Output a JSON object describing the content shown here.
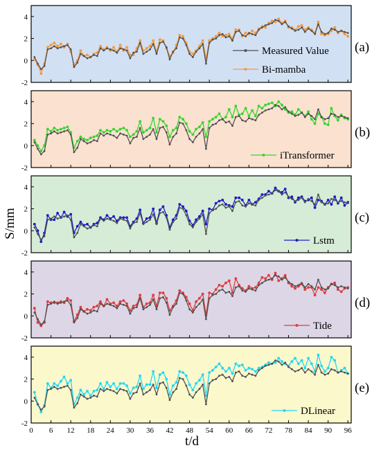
{
  "figure": {
    "ylabel": "S/mm",
    "xlabel": "t/d",
    "x_ticks": [
      0,
      6,
      12,
      18,
      24,
      30,
      36,
      42,
      48,
      54,
      60,
      66,
      72,
      78,
      84,
      90,
      96
    ],
    "y_ticks": [
      -2,
      0,
      2,
      4
    ]
  },
  "chart_data": {
    "type": "line",
    "xlabel": "t/d",
    "ylabel": "S/mm",
    "xlim": [
      0,
      97
    ],
    "ylim": [
      -2,
      5
    ],
    "x": [
      1,
      2,
      3,
      4,
      5,
      6,
      7,
      8,
      9,
      10,
      11,
      12,
      13,
      14,
      15,
      16,
      17,
      18,
      19,
      20,
      21,
      22,
      23,
      24,
      25,
      26,
      27,
      28,
      29,
      30,
      31,
      32,
      33,
      34,
      35,
      36,
      37,
      38,
      39,
      40,
      41,
      42,
      43,
      44,
      45,
      46,
      47,
      48,
      49,
      50,
      51,
      52,
      53,
      54,
      55,
      56,
      57,
      58,
      59,
      60,
      61,
      62,
      63,
      64,
      65,
      66,
      67,
      68,
      69,
      70,
      71,
      72,
      73,
      74,
      75,
      76,
      77,
      78,
      79,
      80,
      81,
      82,
      83,
      84,
      85,
      86,
      87,
      88,
      89,
      90,
      91,
      92,
      93,
      94,
      95,
      96
    ],
    "measured": [
      0.3,
      -0.3,
      -0.8,
      -0.5,
      1.0,
      1.1,
      1.3,
      1.1,
      1.2,
      1.3,
      1.4,
      1.0,
      -0.6,
      -0.2,
      0.6,
      0.4,
      0.2,
      0.3,
      0.5,
      0.4,
      1.1,
      0.9,
      1.1,
      1.0,
      0.9,
      0.7,
      1.1,
      1.0,
      0.9,
      0.2,
      0.7,
      0.8,
      1.6,
      0.6,
      0.8,
      1.0,
      1.5,
      0.6,
      1.6,
      1.7,
      1.2,
      0.1,
      0.8,
      1.1,
      2.1,
      2.0,
      1.4,
      0.6,
      0.3,
      0.8,
      1.1,
      1.5,
      -0.3,
      1.6,
      1.9,
      2.0,
      2.3,
      2.4,
      2.1,
      2.2,
      1.8,
      2.6,
      2.7,
      2.3,
      2.2,
      2.5,
      2.4,
      2.3,
      2.8,
      3.0,
      3.2,
      3.3,
      3.4,
      3.7,
      3.6,
      3.3,
      3.5,
      3.1,
      2.9,
      2.7,
      2.8,
      3.0,
      2.6,
      2.9,
      2.7,
      2.4,
      3.3,
      2.6,
      2.4,
      2.5,
      2.9,
      2.8,
      2.6,
      2.7,
      2.6,
      2.5
    ],
    "series": [
      {
        "name": "Bi-mamba",
        "panel": "(a)",
        "values": [
          0.1,
          -0.4,
          -1.2,
          -0.3,
          1.2,
          1.4,
          1.6,
          1.3,
          1.5,
          1.2,
          1.5,
          0.8,
          -0.4,
          0.0,
          0.9,
          0.4,
          0.5,
          0.3,
          0.6,
          0.7,
          1.3,
          1.0,
          1.2,
          0.9,
          1.2,
          0.8,
          1.4,
          0.9,
          1.2,
          0.5,
          0.5,
          1.1,
          1.8,
          0.9,
          1.1,
          1.3,
          1.8,
          0.8,
          1.9,
          1.8,
          1.1,
          0.4,
          0.7,
          1.4,
          2.3,
          2.2,
          1.6,
          0.8,
          0.6,
          0.9,
          1.3,
          1.8,
          0.2,
          1.8,
          2.0,
          2.2,
          2.5,
          2.2,
          2.3,
          2.4,
          2.0,
          2.8,
          2.8,
          2.2,
          2.5,
          2.4,
          2.7,
          2.5,
          2.9,
          3.1,
          3.0,
          3.4,
          3.6,
          3.5,
          3.8,
          3.4,
          3.6,
          3.0,
          3.0,
          2.8,
          3.1,
          3.2,
          2.8,
          3.0,
          2.8,
          2.5,
          3.5,
          2.4,
          2.3,
          2.4,
          2.7,
          3.0,
          2.5,
          2.7,
          2.4,
          2.2
        ]
      },
      {
        "name": "iTransformer",
        "panel": "(b)",
        "values": [
          0.5,
          0.0,
          -0.5,
          0.0,
          1.5,
          1.3,
          1.6,
          1.4,
          1.5,
          1.6,
          1.7,
          1.2,
          -0.2,
          0.4,
          0.8,
          0.6,
          0.5,
          0.7,
          0.8,
          0.9,
          1.4,
          1.2,
          1.4,
          1.3,
          1.5,
          1.3,
          1.5,
          1.6,
          1.4,
          0.8,
          1.0,
          1.3,
          2.2,
          1.2,
          1.4,
          1.6,
          2.5,
          1.2,
          2.4,
          2.2,
          1.8,
          0.8,
          1.4,
          1.6,
          2.6,
          2.4,
          2.0,
          1.3,
          1.0,
          1.5,
          1.7,
          2.1,
          0.8,
          2.2,
          2.4,
          2.6,
          2.9,
          2.4,
          2.6,
          3.3,
          2.6,
          3.6,
          2.8,
          2.9,
          3.4,
          2.7,
          3.2,
          2.7,
          3.6,
          3.4,
          3.7,
          3.8,
          3.9,
          3.6,
          4.0,
          3.7,
          3.3,
          3.0,
          3.1,
          2.8,
          3.3,
          3.0,
          2.7,
          3.1,
          2.4,
          2.0,
          2.9,
          2.6,
          2.0,
          1.9,
          3.4,
          2.7,
          2.3,
          2.8,
          2.5,
          2.4
        ]
      },
      {
        "name": "Lstm",
        "panel": "(c)",
        "values": [
          0.6,
          0.0,
          -1.0,
          -0.2,
          1.4,
          1.0,
          1.0,
          1.6,
          1.2,
          1.7,
          1.3,
          1.5,
          -0.2,
          0.4,
          0.8,
          0.5,
          0.6,
          0.3,
          0.6,
          0.7,
          1.2,
          1.0,
          1.4,
          1.1,
          1.3,
          0.9,
          1.2,
          1.2,
          1.2,
          0.4,
          0.8,
          1.1,
          1.9,
          0.7,
          1.1,
          1.2,
          2.0,
          0.7,
          1.9,
          2.2,
          1.4,
          0.3,
          1.0,
          1.4,
          2.4,
          2.2,
          1.8,
          0.9,
          0.5,
          1.0,
          1.3,
          1.8,
          0.6,
          2.0,
          1.9,
          2.5,
          2.7,
          2.8,
          2.4,
          2.3,
          2.2,
          3.0,
          3.0,
          2.8,
          2.3,
          2.8,
          2.4,
          2.6,
          2.9,
          3.3,
          3.3,
          3.6,
          3.4,
          3.9,
          3.6,
          3.5,
          3.8,
          3.0,
          3.1,
          2.6,
          3.0,
          3.1,
          2.7,
          2.8,
          3.0,
          2.1,
          2.8,
          2.7,
          2.4,
          2.8,
          2.4,
          3.1,
          2.5,
          3.0,
          2.3,
          2.6
        ]
      },
      {
        "name": "Tide",
        "panel": "(d)",
        "values": [
          0.7,
          -0.6,
          -0.9,
          -0.6,
          1.3,
          1.2,
          1.2,
          1.2,
          1.3,
          1.2,
          1.6,
          1.4,
          -0.5,
          0.1,
          0.8,
          0.4,
          0.6,
          0.5,
          0.8,
          0.9,
          1.3,
          0.9,
          1.5,
          1.1,
          1.2,
          0.9,
          1.3,
          1.4,
          1.1,
          0.5,
          0.9,
          1.0,
          1.9,
          0.8,
          1.1,
          1.2,
          1.9,
          0.9,
          2.1,
          2.1,
          1.6,
          0.5,
          0.9,
          1.4,
          2.3,
          2.1,
          1.7,
          1.1,
          0.5,
          1.3,
          1.6,
          2.0,
          0.1,
          2.1,
          2.0,
          2.4,
          2.8,
          2.7,
          3.0,
          3.2,
          2.1,
          3.4,
          2.8,
          2.5,
          2.3,
          2.7,
          2.5,
          2.6,
          3.0,
          3.5,
          3.4,
          3.7,
          3.3,
          3.9,
          3.2,
          3.4,
          3.7,
          3.0,
          2.7,
          2.5,
          2.7,
          2.9,
          2.4,
          2.6,
          2.6,
          1.9,
          2.6,
          2.4,
          2.1,
          2.6,
          2.9,
          3.0,
          2.4,
          2.2,
          2.5,
          2.6
        ]
      },
      {
        "name": "DLinear",
        "panel": "(e)",
        "values": [
          0.8,
          -0.3,
          -1.0,
          -0.4,
          1.6,
          1.2,
          1.6,
          1.4,
          1.8,
          2.2,
          1.6,
          1.9,
          -0.3,
          0.3,
          1.0,
          0.6,
          0.9,
          0.5,
          0.9,
          1.0,
          1.6,
          1.1,
          1.7,
          1.3,
          1.6,
          1.1,
          1.6,
          1.6,
          1.4,
          0.7,
          1.2,
          1.3,
          2.3,
          1.1,
          1.5,
          1.5,
          2.7,
          1.2,
          2.4,
          2.6,
          2.0,
          0.6,
          1.4,
          1.7,
          2.7,
          2.6,
          2.3,
          1.5,
          1.0,
          1.6,
          1.9,
          2.4,
          0.5,
          2.6,
          2.8,
          3.1,
          3.4,
          3.0,
          2.7,
          3.0,
          2.5,
          3.4,
          3.2,
          3.3,
          2.8,
          3.0,
          2.9,
          2.7,
          3.0,
          3.1,
          3.3,
          3.5,
          3.4,
          3.5,
          3.9,
          3.6,
          3.4,
          3.2,
          3.6,
          3.9,
          3.4,
          3.7,
          3.0,
          3.9,
          3.4,
          2.7,
          4.2,
          3.2,
          2.7,
          3.0,
          4.0,
          3.7,
          2.6,
          2.8,
          3.0,
          2.5
        ]
      }
    ],
    "panels": [
      {
        "label": "(a)",
        "background": "#d2e0f4",
        "color": "#f59a3c",
        "legend": [
          "Measured Value",
          "Bi-mamba"
        ],
        "legend_position": "right"
      },
      {
        "label": "(b)",
        "background": "#fbe1d0",
        "color": "#36d62e",
        "legend": [
          "iTransformer"
        ],
        "legend_position": "bottom-right"
      },
      {
        "label": "(c)",
        "background": "#d6ecd6",
        "color": "#1c1cc8",
        "legend": [
          "Lstm"
        ],
        "legend_position": "bottom-right"
      },
      {
        "label": "(d)",
        "background": "#ddd6e6",
        "color": "#e03c3c",
        "legend": [
          "Tide"
        ],
        "legend_position": "bottom-right"
      },
      {
        "label": "(e)",
        "background": "#fbf8cc",
        "color": "#22d8f2",
        "legend": [
          "DLinear"
        ],
        "legend_position": "bottom-right"
      }
    ],
    "measured_color": "#505050",
    "measured_name": "Measured Value"
  }
}
